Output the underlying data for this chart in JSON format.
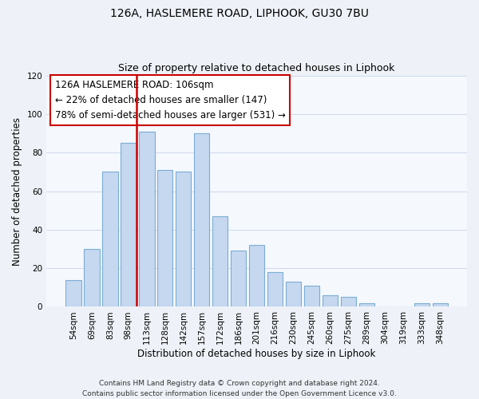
{
  "title": "126A, HASLEMERE ROAD, LIPHOOK, GU30 7BU",
  "subtitle": "Size of property relative to detached houses in Liphook",
  "xlabel": "Distribution of detached houses by size in Liphook",
  "ylabel": "Number of detached properties",
  "categories": [
    "54sqm",
    "69sqm",
    "83sqm",
    "98sqm",
    "113sqm",
    "128sqm",
    "142sqm",
    "157sqm",
    "172sqm",
    "186sqm",
    "201sqm",
    "216sqm",
    "230sqm",
    "245sqm",
    "260sqm",
    "275sqm",
    "289sqm",
    "304sqm",
    "319sqm",
    "333sqm",
    "348sqm"
  ],
  "values": [
    14,
    30,
    70,
    85,
    91,
    71,
    70,
    90,
    47,
    29,
    32,
    18,
    13,
    11,
    6,
    5,
    2,
    0,
    0,
    2,
    2
  ],
  "bar_color": "#c5d8f0",
  "bar_edge_color": "#7aadd4",
  "vline_color": "#cc0000",
  "annotation_line1": "126A HASLEMERE ROAD: 106sqm",
  "annotation_line2": "← 22% of detached houses are smaller (147)",
  "annotation_line3": "78% of semi-detached houses are larger (531) →",
  "ylim": [
    0,
    120
  ],
  "yticks": [
    0,
    20,
    40,
    60,
    80,
    100,
    120
  ],
  "footer": "Contains HM Land Registry data © Crown copyright and database right 2024.\nContains public sector information licensed under the Open Government Licence v3.0.",
  "background_color": "#eef2f8",
  "plot_bg_color": "#f5f8fd",
  "title_fontsize": 10,
  "subtitle_fontsize": 9,
  "axis_label_fontsize": 8.5,
  "tick_fontsize": 7.5,
  "annotation_fontsize": 8.5,
  "footer_fontsize": 6.5
}
